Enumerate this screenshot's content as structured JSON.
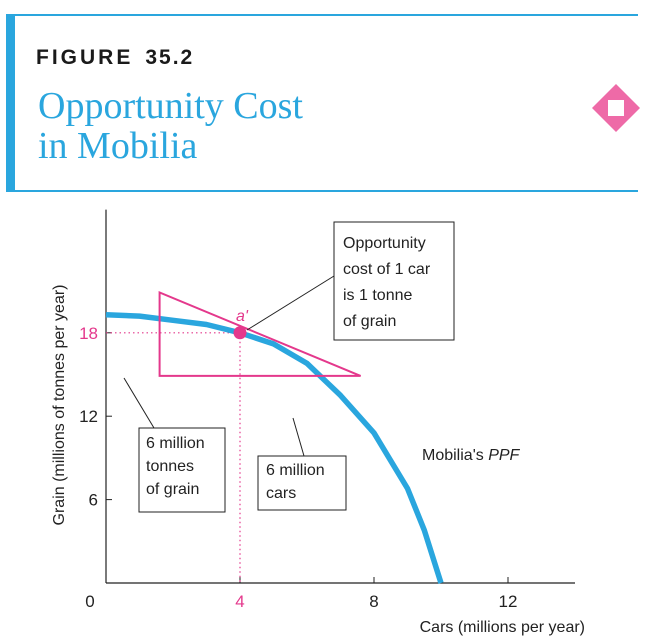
{
  "figure": {
    "label": "FIGURE",
    "number": "35.2",
    "title_line1": "Opportunity Cost",
    "title_line2": "in Mobilia",
    "accent_color": "#2aa6de",
    "icon": "diamond-icon"
  },
  "chart_data": {
    "type": "line",
    "title": "",
    "xlabel": "Cars (millions per year)",
    "ylabel": "Grain (millions of tonnes per year)",
    "xlim": [
      0,
      14
    ],
    "ylim": [
      0,
      26
    ],
    "origin_label": "0",
    "x_ticks": [
      {
        "value": 4,
        "label": "4",
        "highlight": true
      },
      {
        "value": 8,
        "label": "8",
        "highlight": false
      },
      {
        "value": 12,
        "label": "12",
        "highlight": false
      }
    ],
    "y_ticks": [
      {
        "value": 6,
        "label": "6",
        "highlight": false
      },
      {
        "value": 12,
        "label": "12",
        "highlight": false
      },
      {
        "value": 18,
        "label": "18",
        "highlight": true
      }
    ],
    "series": [
      {
        "name": "Mobilia's PPF",
        "color": "#2aa6de",
        "x": [
          0,
          1,
          2,
          3,
          4,
          5,
          6,
          7,
          8,
          9,
          9.5,
          10
        ],
        "y": [
          19.3,
          19.2,
          18.9,
          18.6,
          18,
          17.2,
          15.8,
          13.5,
          10.8,
          6.8,
          3.8,
          0
        ]
      }
    ],
    "point": {
      "label": "a'",
      "x": 4,
      "y": 18,
      "color": "#e4388c"
    },
    "triangle": {
      "color": "#e4388c",
      "vertices": [
        [
          1.6,
          20.9
        ],
        [
          1.6,
          14.9
        ],
        [
          7.6,
          14.9
        ]
      ]
    },
    "annotations": {
      "ppf_label": "Mobilia's",
      "ppf_label_italic": "PPF",
      "opportunity_cost": [
        "Opportunity",
        "cost of 1 car",
        "is 1 tonne",
        "of grain"
      ],
      "grain_box": [
        "6 million",
        "tonnes",
        "of grain"
      ],
      "cars_box": [
        "6 million",
        "cars"
      ]
    }
  }
}
